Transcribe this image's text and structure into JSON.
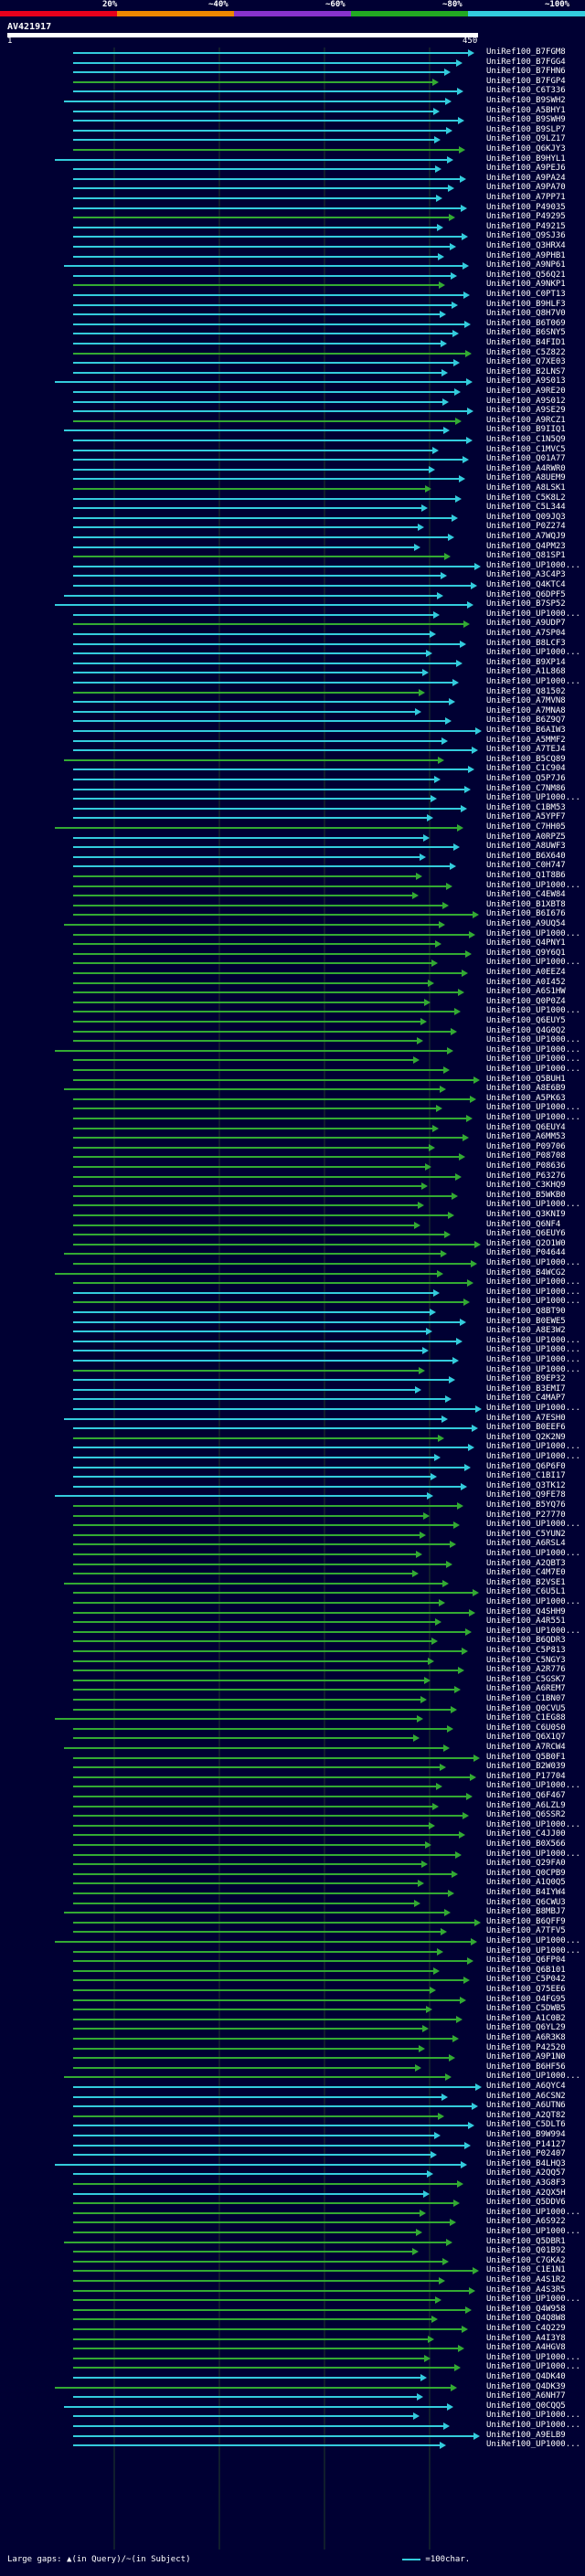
{
  "scale": {
    "labels": [
      "20%",
      "~40%",
      "~60%",
      "~80%",
      "~100%"
    ],
    "colors": [
      "#e8001c",
      "#ee8800",
      "#8833cc",
      "#22aa22",
      "#33ccdd"
    ]
  },
  "query": {
    "title": "AV421917",
    "start": "1",
    "end": "450"
  },
  "colors": {
    "cyan": "#33ccdd",
    "green": "#33aa33"
  },
  "hits": [
    "UniRef100_B7FGM8",
    "UniRef100_B7FGG4",
    "UniRef100_B7FHN6",
    "UniRef100_B7FGP4",
    "UniRef100_C6T336",
    "UniRef100_B9SWH2",
    "UniRef100_A5BHY1",
    "UniRef100_B9SWH9",
    "UniRef100_B9SLP7",
    "UniRef100_Q9LZ17",
    "UniRef100_Q6KJY3",
    "UniRef100_B9HYL1",
    "UniRef100_A9PEJ6",
    "UniRef100_A9PA24",
    "UniRef100_A9PA70",
    "UniRef100_A7PP71",
    "UniRef100_P49035",
    "UniRef100_P49295",
    "UniRef100_P49215",
    "UniRef100_Q9SJ36",
    "UniRef100_Q3HRX4",
    "UniRef100_A9PHB1",
    "UniRef100_A9NP61",
    "UniRef100_Q56Q21",
    "UniRef100_A9NKP1",
    "UniRef100_C0PT13",
    "UniRef100_B9HLF3",
    "UniRef100_Q8H7V0",
    "UniRef100_B6T069",
    "UniRef100_B6SNY5",
    "UniRef100_B4FID1",
    "UniRef100_C5Z822",
    "UniRef100_Q7XE03",
    "UniRef100_B2LNS7",
    "UniRef100_A9S013",
    "UniRef100_A9RE20",
    "UniRef100_A9S012",
    "UniRef100_A9SE29",
    "UniRef100_A9RCZ1",
    "UniRef100_B9IIQ1",
    "UniRef100_C1N5Q9",
    "UniRef100_C1MVC5",
    "UniRef100_Q01A77",
    "UniRef100_A4RWR0",
    "UniRef100_A8UEM9",
    "UniRef100_A8LSK1",
    "UniRef100_C5K8L2",
    "UniRef100_C5L344",
    "UniRef100_Q09JQ3",
    "UniRef100_P0Z274",
    "UniRef100_A7WQJ9",
    "UniRef100_Q4PM23",
    "UniRef100_Q81SP1",
    "UniRef100_UP1000...",
    "UniRef100_A3C4P3",
    "UniRef100_Q4KTC4",
    "UniRef100_Q6DPF5",
    "UniRef100_B7SP52",
    "UniRef100_UP1000...",
    "UniRef100_A9UDP7",
    "UniRef100_A7SP04",
    "UniRef100_B8LCF3",
    "UniRef100_UP1000...",
    "UniRef100_B9XP14",
    "UniRef100_A1L868",
    "UniRef100_UP1000...",
    "UniRef100_Q81502",
    "UniRef100_A7MVN8",
    "UniRef100_A7MNA8",
    "UniRef100_B6Z9Q7",
    "UniRef100_B6AIW3",
    "UniRef100_A5MMF2",
    "UniRef100_A7TEJ4",
    "UniRef100_B5CQ89",
    "UniRef100_C1C904",
    "UniRef100_Q5P7J6",
    "UniRef100_C7NM86",
    "UniRef100_UP1000...",
    "UniRef100_C1BM53",
    "UniRef100_A5YPF7",
    "UniRef100_C7HH05",
    "UniRef100_A0RPZ5",
    "UniRef100_A8UWF3",
    "UniRef100_B6X640",
    "UniRef100_C0H747",
    "UniRef100_Q1T8B6",
    "UniRef100_UP1000...",
    "UniRef100_C4EW84",
    "UniRef100_B1XBT8",
    "UniRef100_B6I676",
    "UniRef100_A9UQ54",
    "UniRef100_UP1000...",
    "UniRef100_Q4PNY1",
    "UniRef100_Q9Y6Q1",
    "UniRef100_UP1000...",
    "UniRef100_A0EEZ4",
    "UniRef100_A0I452",
    "UniRef100_A6S1HW",
    "UniRef100_Q0P0Z4",
    "UniRef100_UP1000...",
    "UniRef100_Q6EUY5",
    "UniRef100_Q4G0Q2",
    "UniRef100_UP1000...",
    "UniRef100_UP1000...",
    "UniRef100_UP1000...",
    "UniRef100_UP1000...",
    "UniRef100_Q5BUH1",
    "UniRef100_A8E6B9",
    "UniRef100_A5PK63",
    "UniRef100_UP1000...",
    "UniRef100_UP1000...",
    "UniRef100_Q6EUY4",
    "UniRef100_A6MM53",
    "UniRef100_P09706",
    "UniRef100_P08708",
    "UniRef100_P08636",
    "UniRef100_P63276",
    "UniRef100_C3KHQ9",
    "UniRef100_B5WKB0",
    "UniRef100_UP1000...",
    "UniRef100_Q3KNI9",
    "UniRef100_Q6NF4",
    "UniRef100_Q6EUY6",
    "UniRef100_Q2O1W0",
    "UniRef100_P04644",
    "UniRef100_UP1000...",
    "UniRef100_B4WCG2",
    "UniRef100_UP1000...",
    "UniRef100_UP1000...",
    "UniRef100_UP1000...",
    "UniRef100_Q8BT90",
    "UniRef100_B0EWE5",
    "UniRef100_A8E3W2",
    "UniRef100_UP1000...",
    "UniRef100_UP1000...",
    "UniRef100_UP1000...",
    "UniRef100_UP1000...",
    "UniRef100_B9EP32",
    "UniRef100_B3EMI7",
    "UniRef100_C4MAP7",
    "UniRef100_UP1000...",
    "UniRef100_A7ESH0",
    "UniRef100_B0EEF6",
    "UniRef100_Q2K2N9",
    "UniRef100_UP1000...",
    "UniRef100_UP1000...",
    "UniRef100_Q6P6F0",
    "UniRef100_C1BI17",
    "UniRef100_Q3TK12",
    "UniRef100_Q9FE78",
    "UniRef100_B5YQ76",
    "UniRef100_P27770",
    "UniRef100_UP1000...",
    "UniRef100_C5YUN2",
    "UniRef100_A6RSL4",
    "UniRef100_UP1000...",
    "UniRef100_A2QBT3",
    "UniRef100_C4M7E0",
    "UniRef100_B2VSE1",
    "UniRef100_C6U5L1",
    "UniRef100_UP1000...",
    "UniRef100_Q4SHH9",
    "UniRef100_A4R551",
    "UniRef100_UP1000...",
    "UniRef100_B6QDR3",
    "UniRef100_C5P813",
    "UniRef100_C5NGY3",
    "UniRef100_A2R776",
    "UniRef100_C5GSK7",
    "UniRef100_A6REM7",
    "UniRef100_C1BN07",
    "UniRef100_Q0CVU5",
    "UniRef100_C1EG88",
    "UniRef100_C6U0S0",
    "UniRef100_Q6X1Q7",
    "UniRef100_A7RCW4",
    "UniRef100_Q5B0F1",
    "UniRef100_B2W039",
    "UniRef100_P17704",
    "UniRef100_UP1000...",
    "UniRef100_Q6F467",
    "UniRef100_A6LZL9",
    "UniRef100_Q6SSR2",
    "UniRef100_UP1000...",
    "UniRef100_C4JJ00",
    "UniRef100_B0X566",
    "UniRef100_UP1000...",
    "UniRef100_Q29FA0",
    "UniRef100_Q0CPB9",
    "UniRef100_A1Q0Q5",
    "UniRef100_B4IYW4",
    "UniRef100_Q6CWU3",
    "UniRef100_B8MBJ7",
    "UniRef100_B6QFF9",
    "UniRef100_A7TFV5",
    "UniRef100_UP1000...",
    "UniRef100_UP1000...",
    "UniRef100_Q6FP04",
    "UniRef100_Q6B101",
    "UniRef100_C5P042",
    "UniRef100_Q75EE6",
    "UniRef100_O4FG95",
    "UniRef100_C5DWB5",
    "UniRef100_A1C0B2",
    "UniRef100_Q6YL29",
    "UniRef100_A6R3K8",
    "UniRef100_P42520",
    "UniRef100_A9P1N0",
    "UniRef100_B6HF56",
    "UniRef100_UP1000...",
    "UniRef100_A6QYC4",
    "UniRef100_A6CSN2",
    "UniRef100_A6UTN6",
    "UniRef100_A2QT82",
    "UniRef100_C5DLT6",
    "UniRef100_B9W994",
    "UniRef100_P14127",
    "UniRef100_P02407",
    "UniRef100_B4LHQ3",
    "UniRef100_A2QQ57",
    "UniRef100_A3G8F3",
    "UniRef100_A2QX5H",
    "UniRef100_Q5DDV6",
    "UniRef100_UP1000...",
    "UniRef100_A6S922",
    "UniRef100_UP1000...",
    "UniRef100_Q5DBR1",
    "UniRef100_Q01B92",
    "UniRef100_C7GKA2",
    "UniRef100_C1E1N1",
    "UniRef100_A4S1R2",
    "UniRef100_A4S3R5",
    "UniRef100_UP1000...",
    "UniRef100_Q4W958",
    "UniRef100_Q4Q8W8",
    "UniRef100_C4Q229",
    "UniRef100_A4I3Y8",
    "UniRef100_A4HGV8",
    "UniRef100_UP1000...",
    "UniRef100_UP1000...",
    "UniRef100_Q4DK40",
    "UniRef100_Q4DK39",
    "UniRef100_A6NH77",
    "UniRef100_Q0CQQ5",
    "UniRef100_UP1000...",
    "UniRef100_UP1000...",
    "UniRef100_A9ELB9",
    "UniRef100_UP1000..."
  ],
  "legend": {
    "gaps": "Large gaps: ▲(in Query)/~(in Subject)",
    "scale": "=100char."
  }
}
